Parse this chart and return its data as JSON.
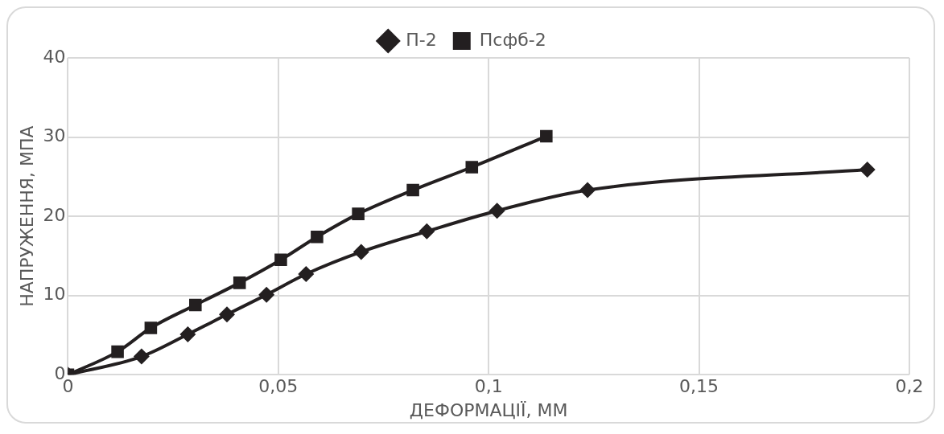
{
  "chart_data": {
    "type": "line",
    "xlabel": "ДЕФОРМАЦІЇ, ММ",
    "ylabel": "НАПРУЖЕННЯ, МПА",
    "xlim": [
      0,
      0.2
    ],
    "xticks": [
      {
        "value": 0,
        "label": "0"
      },
      {
        "value": 0.05,
        "label": "0,05"
      },
      {
        "value": 0.1,
        "label": "0,1"
      },
      {
        "value": 0.15,
        "label": "0,15"
      },
      {
        "value": 0.2,
        "label": "0,2"
      }
    ],
    "ylim": [
      0,
      40
    ],
    "yticks": [
      0,
      10,
      20,
      30,
      40
    ],
    "grid": true,
    "legend": "top",
    "series": [
      {
        "name": "П-2",
        "color": "#231f20",
        "marker": "diamond",
        "x": [
          0,
          0.0175,
          0.0285,
          0.0378,
          0.0472,
          0.0566,
          0.0697,
          0.0853,
          0.102,
          0.1235,
          0.19
        ],
        "values": [
          0,
          2.3,
          5.1,
          7.6,
          10.1,
          12.7,
          15.5,
          18.1,
          20.7,
          23.3,
          25.9
        ]
      },
      {
        "name": "Псфб-2",
        "color": "#231f20",
        "marker": "square",
        "x": [
          0,
          0.0118,
          0.0197,
          0.0303,
          0.0408,
          0.0506,
          0.0592,
          0.069,
          0.082,
          0.096,
          0.1137
        ],
        "values": [
          0,
          2.9,
          5.9,
          8.8,
          11.6,
          14.5,
          17.4,
          20.3,
          23.3,
          26.2,
          30.1
        ]
      }
    ]
  }
}
